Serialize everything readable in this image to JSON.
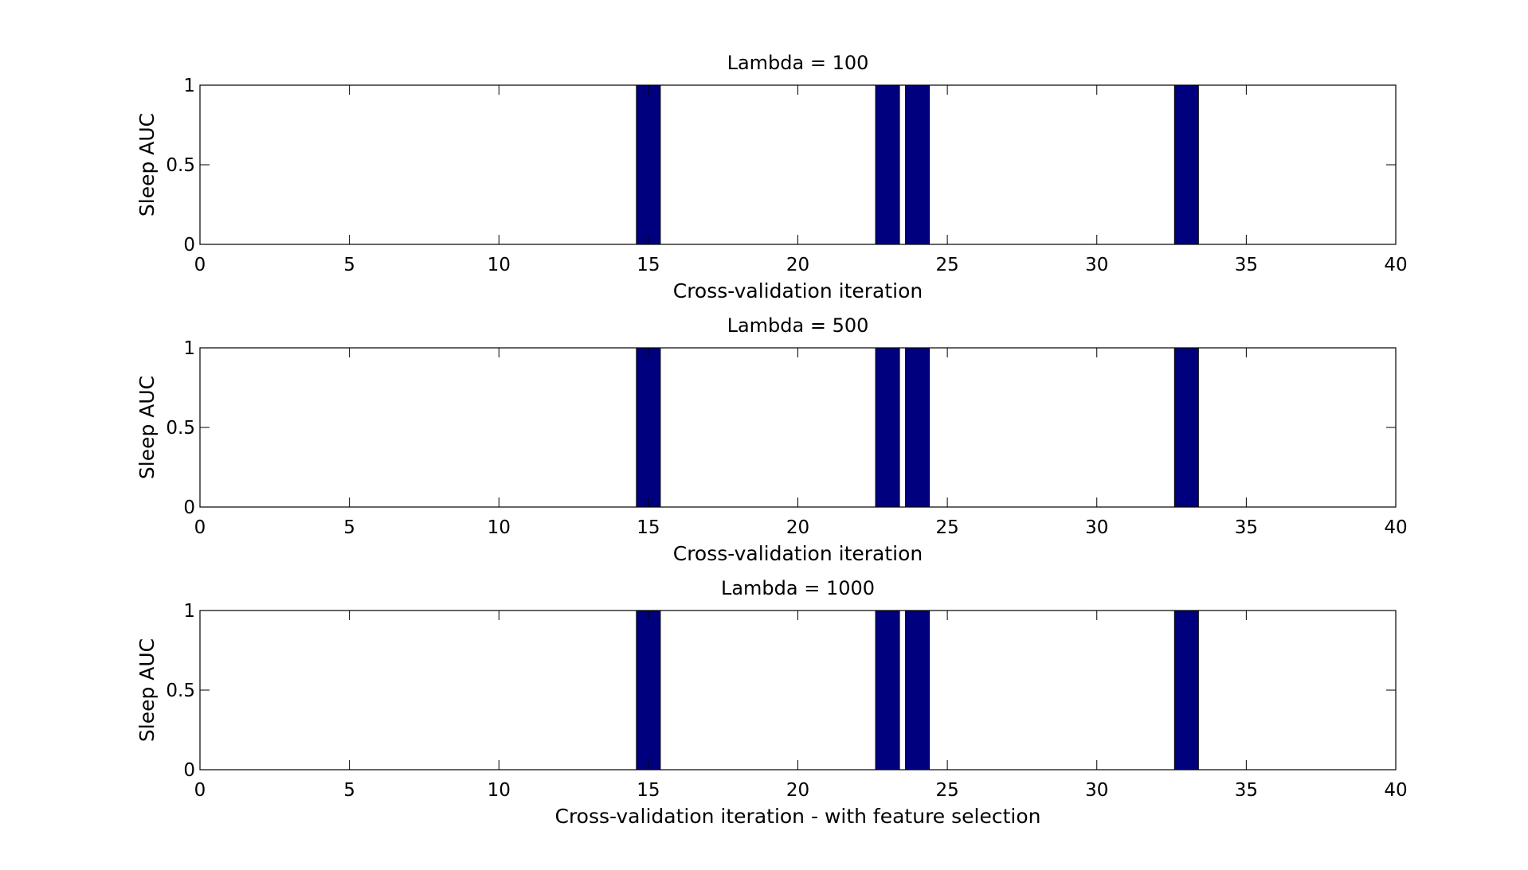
{
  "chart_data": [
    {
      "type": "bar",
      "title": "Lambda = 100",
      "xlabel": "Cross-validation iteration",
      "ylabel": "Sleep AUC",
      "xlim": [
        0,
        40
      ],
      "ylim": [
        0,
        1
      ],
      "xticks": [
        0,
        5,
        10,
        15,
        20,
        25,
        30,
        35,
        40
      ],
      "yticks": [
        0,
        0.5,
        1
      ],
      "grid": false,
      "bar_color": "#00007f",
      "x": [
        15,
        23,
        24,
        33
      ],
      "values": [
        1,
        1,
        1,
        1
      ]
    },
    {
      "type": "bar",
      "title": "Lambda = 500",
      "xlabel": "Cross-validation iteration",
      "ylabel": "Sleep AUC",
      "xlim": [
        0,
        40
      ],
      "ylim": [
        0,
        1
      ],
      "xticks": [
        0,
        5,
        10,
        15,
        20,
        25,
        30,
        35,
        40
      ],
      "yticks": [
        0,
        0.5,
        1
      ],
      "grid": false,
      "bar_color": "#00007f",
      "x": [
        15,
        23,
        24,
        33
      ],
      "values": [
        1,
        1,
        1,
        1
      ]
    },
    {
      "type": "bar",
      "title": "Lambda = 1000",
      "xlabel": "Cross-validation iteration - with feature selection",
      "ylabel": "Sleep AUC",
      "xlim": [
        0,
        40
      ],
      "ylim": [
        0,
        1
      ],
      "xticks": [
        0,
        5,
        10,
        15,
        20,
        25,
        30,
        35,
        40
      ],
      "yticks": [
        0,
        0.5,
        1
      ],
      "grid": false,
      "bar_color": "#00007f",
      "x": [
        15,
        23,
        24,
        33
      ],
      "values": [
        1,
        1,
        1,
        1
      ]
    }
  ]
}
